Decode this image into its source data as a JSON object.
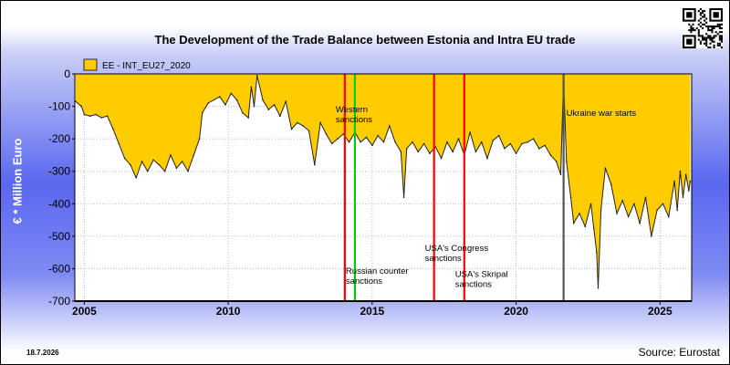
{
  "chart_data": {
    "type": "area",
    "title": "The Development of the Trade Balance between Estonia and Intra EU trade",
    "ylabel": "€ * Million Euro",
    "xlabel": "",
    "ylim": [
      -700,
      0
    ],
    "xlim": [
      2004.67,
      2026.1
    ],
    "yticks": [
      0,
      -100,
      -200,
      -300,
      -400,
      -500,
      -600,
      -700
    ],
    "xticks": [
      2005,
      2010,
      2015,
      2020,
      2025
    ],
    "grid": true,
    "legend_position": "top-left",
    "series": [
      {
        "name": "EE - INT_EU27_2020",
        "color": "#ffcc00",
        "points": [
          [
            2004.7,
            -85
          ],
          [
            2004.9,
            -100
          ],
          [
            2005.0,
            -125
          ],
          [
            2005.2,
            -130
          ],
          [
            2005.4,
            -125
          ],
          [
            2005.6,
            -135
          ],
          [
            2005.8,
            -130
          ],
          [
            2006.0,
            -170
          ],
          [
            2006.2,
            -215
          ],
          [
            2006.4,
            -260
          ],
          [
            2006.6,
            -280
          ],
          [
            2006.8,
            -320
          ],
          [
            2007.0,
            -270
          ],
          [
            2007.2,
            -300
          ],
          [
            2007.4,
            -265
          ],
          [
            2007.6,
            -280
          ],
          [
            2007.8,
            -300
          ],
          [
            2008.0,
            -250
          ],
          [
            2008.2,
            -290
          ],
          [
            2008.4,
            -270
          ],
          [
            2008.6,
            -300
          ],
          [
            2008.8,
            -250
          ],
          [
            2009.0,
            -200
          ],
          [
            2009.1,
            -120
          ],
          [
            2009.3,
            -90
          ],
          [
            2009.5,
            -80
          ],
          [
            2009.7,
            -70
          ],
          [
            2009.9,
            -95
          ],
          [
            2010.1,
            -60
          ],
          [
            2010.3,
            -80
          ],
          [
            2010.5,
            -120
          ],
          [
            2010.7,
            -135
          ],
          [
            2010.8,
            -40
          ],
          [
            2010.9,
            -100
          ],
          [
            2011.0,
            -5
          ],
          [
            2011.2,
            -80
          ],
          [
            2011.4,
            -110
          ],
          [
            2011.6,
            -95
          ],
          [
            2011.8,
            -130
          ],
          [
            2012.0,
            -85
          ],
          [
            2012.2,
            -170
          ],
          [
            2012.4,
            -150
          ],
          [
            2012.6,
            -160
          ],
          [
            2012.8,
            -175
          ],
          [
            2013.0,
            -280
          ],
          [
            2013.2,
            -150
          ],
          [
            2013.4,
            -185
          ],
          [
            2013.6,
            -215
          ],
          [
            2013.8,
            -200
          ],
          [
            2014.0,
            -185
          ],
          [
            2014.2,
            -210
          ],
          [
            2014.4,
            -180
          ],
          [
            2014.6,
            -210
          ],
          [
            2014.8,
            -195
          ],
          [
            2015.0,
            -220
          ],
          [
            2015.2,
            -190
          ],
          [
            2015.4,
            -210
          ],
          [
            2015.6,
            -160
          ],
          [
            2015.8,
            -210
          ],
          [
            2016.0,
            -240
          ],
          [
            2016.1,
            -380
          ],
          [
            2016.2,
            -230
          ],
          [
            2016.4,
            -210
          ],
          [
            2016.6,
            -240
          ],
          [
            2016.8,
            -215
          ],
          [
            2017.0,
            -245
          ],
          [
            2017.2,
            -225
          ],
          [
            2017.4,
            -260
          ],
          [
            2017.6,
            -210
          ],
          [
            2017.8,
            -240
          ],
          [
            2018.0,
            -200
          ],
          [
            2018.2,
            -250
          ],
          [
            2018.4,
            -180
          ],
          [
            2018.6,
            -240
          ],
          [
            2018.8,
            -210
          ],
          [
            2019.0,
            -260
          ],
          [
            2019.2,
            -205
          ],
          [
            2019.4,
            -190
          ],
          [
            2019.6,
            -230
          ],
          [
            2019.8,
            -215
          ],
          [
            2020.0,
            -245
          ],
          [
            2020.2,
            -215
          ],
          [
            2020.4,
            -210
          ],
          [
            2020.6,
            -200
          ],
          [
            2020.8,
            -230
          ],
          [
            2021.0,
            -220
          ],
          [
            2021.2,
            -250
          ],
          [
            2021.4,
            -270
          ],
          [
            2021.55,
            -310
          ],
          [
            2021.65,
            -15
          ],
          [
            2021.75,
            -270
          ],
          [
            2021.9,
            -380
          ],
          [
            2022.0,
            -460
          ],
          [
            2022.2,
            -430
          ],
          [
            2022.4,
            -470
          ],
          [
            2022.6,
            -400
          ],
          [
            2022.7,
            -475
          ],
          [
            2022.8,
            -550
          ],
          [
            2022.85,
            -660
          ],
          [
            2022.95,
            -420
          ],
          [
            2023.1,
            -290
          ],
          [
            2023.3,
            -340
          ],
          [
            2023.5,
            -430
          ],
          [
            2023.7,
            -390
          ],
          [
            2023.9,
            -440
          ],
          [
            2024.1,
            -400
          ],
          [
            2024.3,
            -460
          ],
          [
            2024.5,
            -380
          ],
          [
            2024.7,
            -500
          ],
          [
            2024.9,
            -420
          ],
          [
            2025.1,
            -400
          ],
          [
            2025.3,
            -440
          ],
          [
            2025.5,
            -330
          ],
          [
            2025.6,
            -420
          ],
          [
            2025.7,
            -300
          ],
          [
            2025.8,
            -380
          ],
          [
            2025.9,
            -310
          ],
          [
            2026.0,
            -360
          ],
          [
            2026.05,
            -330
          ]
        ]
      }
    ],
    "annotations": [
      {
        "lines": [
          "Western",
          "sanctions"
        ],
        "x": 2014.05,
        "color": "#ff0000",
        "label_y": -118
      },
      {
        "lines": [
          "Russian counter",
          "sanctions"
        ],
        "x": 2014.4,
        "color": "#00cc00",
        "label_y": -615
      },
      {
        "lines": [
          "USA's Congress",
          "sanctions"
        ],
        "x": 2017.15,
        "color": "#ff0000",
        "label_y": -545
      },
      {
        "lines": [
          "USA's Skripal",
          "sanctions"
        ],
        "x": 2018.2,
        "color": "#ff0000",
        "label_y": -625
      },
      {
        "lines": [
          "Ukraine war starts"
        ],
        "x": 2021.65,
        "color": "#555555",
        "label_y": -130
      }
    ]
  },
  "footer": {
    "date": "18.7.2026",
    "source": "Source: Eurostat"
  },
  "icons": {
    "qr": "qr-code-icon"
  }
}
